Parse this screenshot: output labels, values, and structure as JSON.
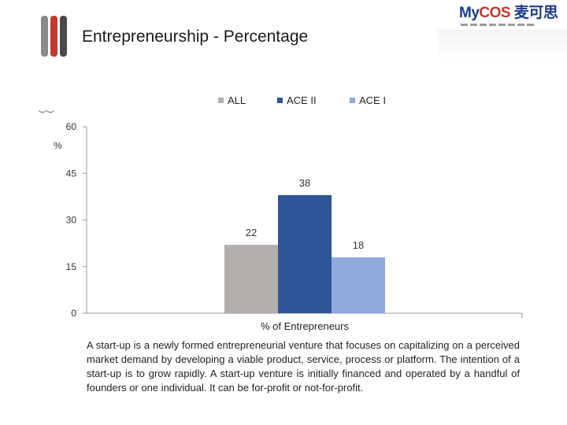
{
  "title": "Entrepreneurship - Percentage",
  "logo": {
    "brand_prefix": "My",
    "brand_suffix": "COS",
    "brand_cn": "麦可思",
    "icon": "mycos-logo"
  },
  "accent_color": "#c0392b",
  "chart_data": {
    "type": "bar",
    "categories": [
      "% of Entrepreneurs"
    ],
    "series": [
      {
        "name": "ALL",
        "values": [
          22
        ],
        "color": "#b1aeac"
      },
      {
        "name": "ACE II",
        "values": [
          38
        ],
        "color": "#2f5597"
      },
      {
        "name": "ACE I",
        "values": [
          18
        ],
        "color": "#8faadc"
      }
    ],
    "xlabel": "% of Entrepreneurs",
    "ylabel": "%",
    "ylabel_paren": "︶︶",
    "ylim": [
      0,
      60
    ],
    "yticks": [
      0,
      15,
      30,
      45,
      60
    ],
    "grid": false,
    "legend_position": "top"
  },
  "caption": "A start-up is a newly formed entrepreneurial venture that focuses on capitalizing on a perceived market demand by developing a viable product, service, process or platform. The intention of a start-up is to grow rapidly. A start-up venture is initially financed and operated by a handful of founders or one individual. It can be for-profit or not-for-profit."
}
